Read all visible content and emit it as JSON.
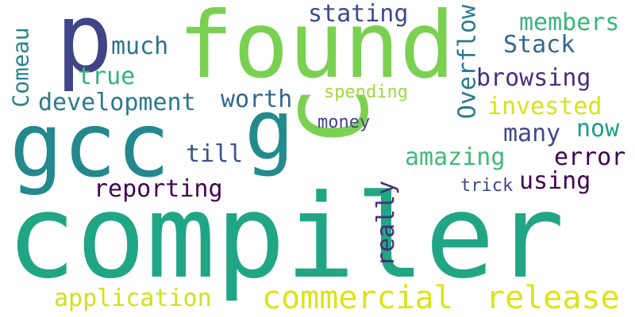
{
  "word_cloud": {
    "words": [
      {
        "text": "compiler",
        "color": "#21a685"
      },
      {
        "text": "found",
        "color": "#7ad151"
      },
      {
        "text": "gcc",
        "color": "#23898e"
      },
      {
        "text": "p",
        "color": "#414487"
      },
      {
        "text": "g",
        "color": "#238a8d"
      },
      {
        "text": "C",
        "color": "#7ad151"
      },
      {
        "text": "commercial",
        "color": "#dde318"
      },
      {
        "text": "release",
        "color": "#dde318"
      },
      {
        "text": "application",
        "color": "#d0e11c"
      },
      {
        "text": "reporting",
        "color": "#440154"
      },
      {
        "text": "development",
        "color": "#2a788e"
      },
      {
        "text": "worth",
        "color": "#31688e"
      },
      {
        "text": "till",
        "color": "#3b528b"
      },
      {
        "text": "much",
        "color": "#2c728e"
      },
      {
        "text": "true",
        "color": "#2fb47c"
      },
      {
        "text": "Comeau",
        "color": "#25848e"
      },
      {
        "text": "stating",
        "color": "#3e4a89"
      },
      {
        "text": "members",
        "color": "#35b779"
      },
      {
        "text": "Stack",
        "color": "#31688e"
      },
      {
        "text": "Overflow",
        "color": "#2a788e"
      },
      {
        "text": "browsing",
        "color": "#46307e"
      },
      {
        "text": "invested",
        "color": "#d8e219"
      },
      {
        "text": "spending",
        "color": "#a0da39"
      },
      {
        "text": "money",
        "color": "#414487"
      },
      {
        "text": "many",
        "color": "#3f4889"
      },
      {
        "text": "now",
        "color": "#1f9f88"
      },
      {
        "text": "amazing",
        "color": "#3dbc74"
      },
      {
        "text": "error",
        "color": "#440154"
      },
      {
        "text": "using",
        "color": "#440154"
      },
      {
        "text": "trick",
        "color": "#414487"
      },
      {
        "text": "really",
        "color": "#472d7b"
      }
    ]
  }
}
